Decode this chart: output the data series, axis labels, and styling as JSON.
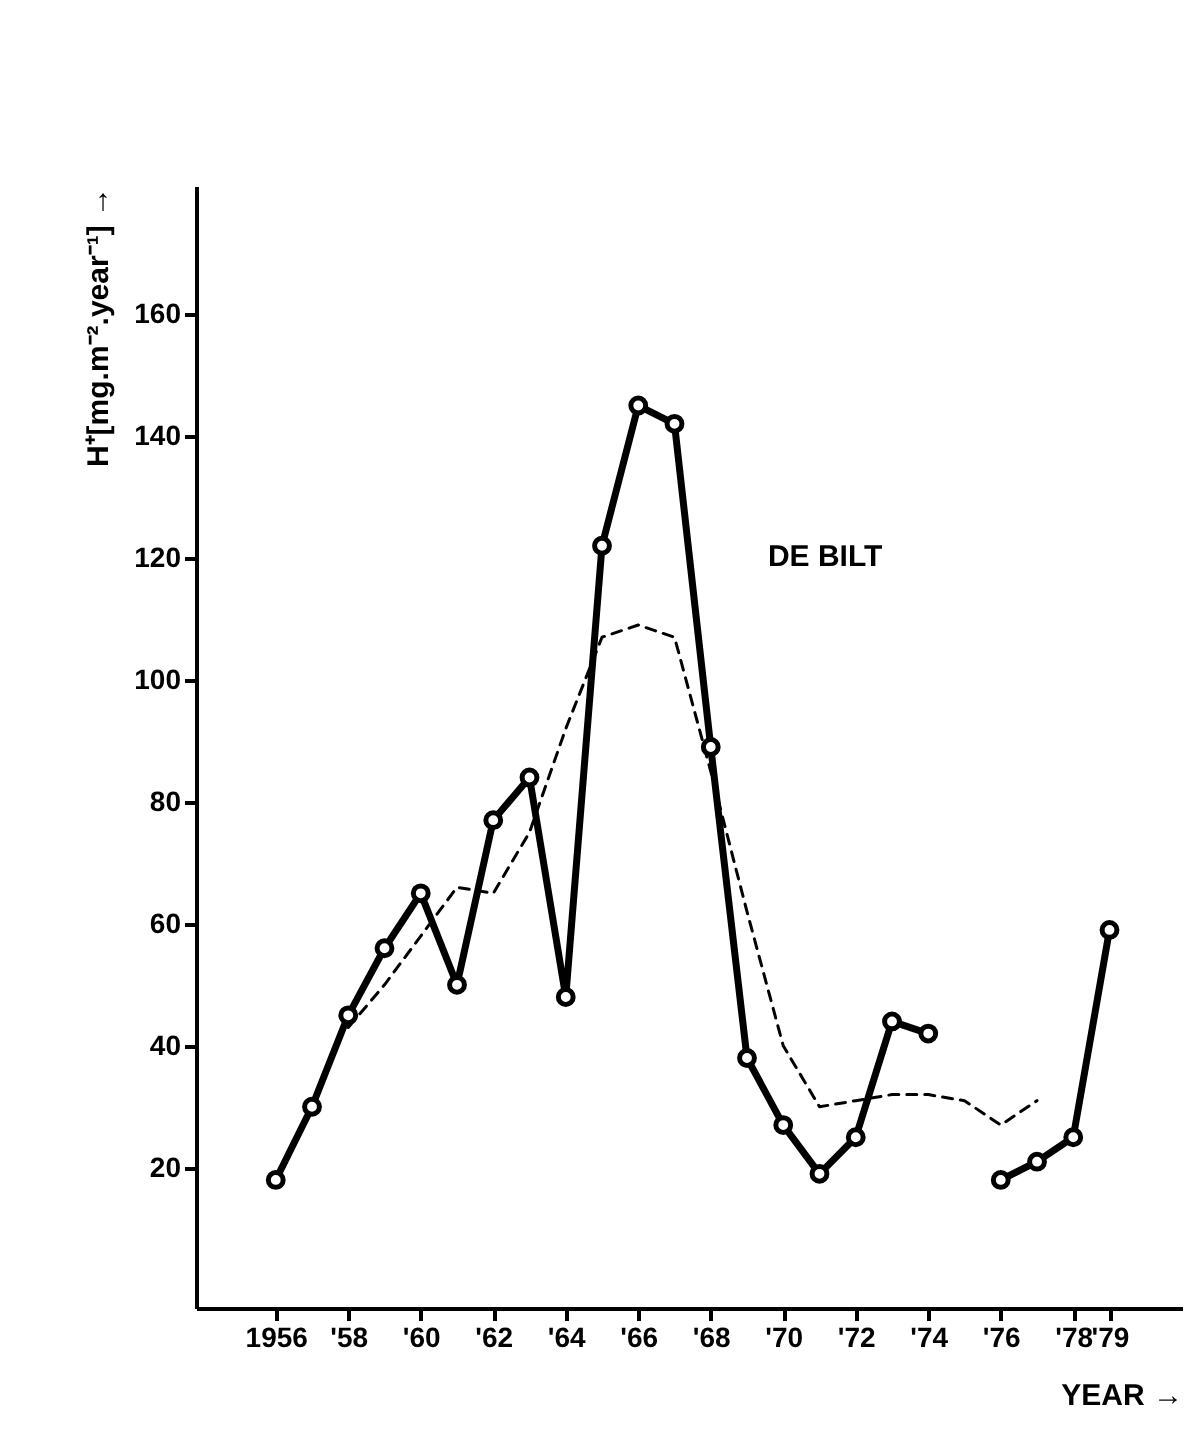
{
  "chart_data": {
    "type": "line",
    "xlabel": "YEAR →",
    "ylabel": "H⁺[mg.m⁻².year⁻¹] →",
    "annotations": [
      "DE BILT"
    ],
    "x": [
      1956,
      1957,
      1958,
      1959,
      1960,
      1961,
      1962,
      1963,
      1964,
      1965,
      1966,
      1967,
      1968,
      1969,
      1970,
      1971,
      1972,
      1973,
      1974,
      1975,
      1976,
      1977,
      1978,
      1979
    ],
    "series": [
      {
        "color": "#000000",
        "marker": "circle",
        "line_style": "solid",
        "values": [
          18,
          30,
          45,
          56,
          65,
          50,
          77,
          84,
          48,
          122,
          145,
          142,
          89,
          38,
          27,
          19,
          25,
          44,
          42,
          null,
          18,
          21,
          25,
          59
        ]
      },
      {
        "color": "#000000",
        "marker": "none",
        "line_style": "dashed",
        "values": [
          null,
          null,
          43,
          50,
          58,
          66,
          65,
          75,
          92,
          107,
          109,
          107,
          85,
          62,
          40,
          30,
          31,
          32,
          32,
          31,
          27,
          31,
          null,
          null
        ]
      }
    ],
    "xlim": [
      1953.8,
      1981
    ],
    "ylim": [
      -3,
      181
    ],
    "xticks": [
      {
        "value": 1956,
        "label": "1956"
      },
      {
        "value": 1958,
        "label": "'58"
      },
      {
        "value": 1960,
        "label": "'60"
      },
      {
        "value": 1962,
        "label": "'62"
      },
      {
        "value": 1964,
        "label": "'64"
      },
      {
        "value": 1966,
        "label": "'66"
      },
      {
        "value": 1968,
        "label": "'68"
      },
      {
        "value": 1970,
        "label": "'70"
      },
      {
        "value": 1972,
        "label": "'72"
      },
      {
        "value": 1974,
        "label": "'74"
      },
      {
        "value": 1976,
        "label": "'76"
      },
      {
        "value": 1978,
        "label": "'78"
      },
      {
        "value": 1979,
        "label": "'79"
      }
    ],
    "yticks": [
      20,
      40,
      60,
      80,
      100,
      120,
      140,
      160
    ],
    "grid": false
  }
}
